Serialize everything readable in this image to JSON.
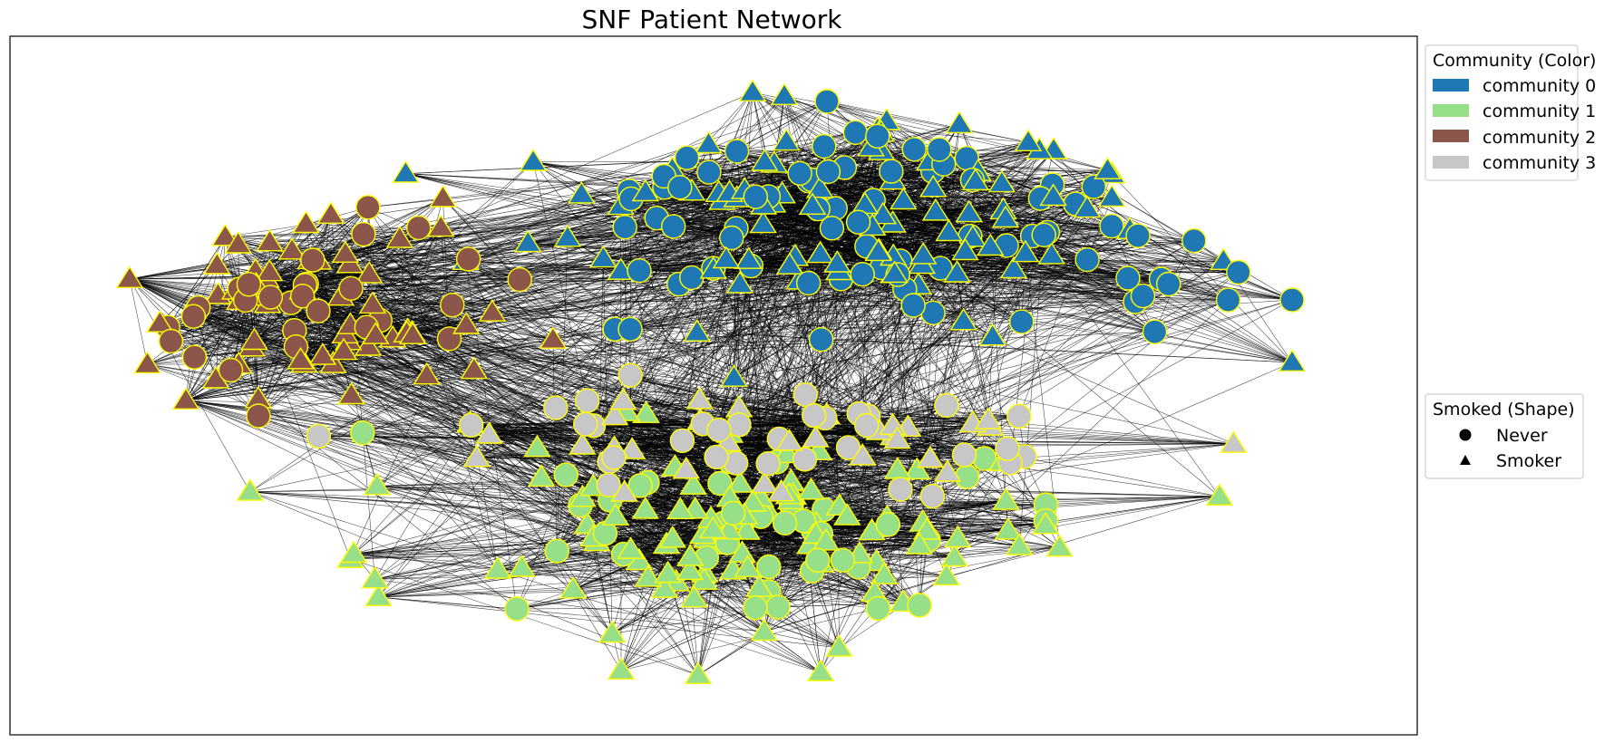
{
  "title": "SNF Patient Network",
  "node_style": {
    "stroke": "#ffff00",
    "edge_color": "#000000"
  },
  "legend_community": {
    "title": "Community (Color)",
    "items": [
      {
        "label": "community 0",
        "color": "#1f77b4"
      },
      {
        "label": "community 1",
        "color": "#98df8a"
      },
      {
        "label": "community 2",
        "color": "#8c564b"
      },
      {
        "label": "community 3",
        "color": "#c7c7c7"
      }
    ]
  },
  "legend_shape": {
    "title": "Smoked (Shape)",
    "items": [
      {
        "label": "Never",
        "shape": "circle"
      },
      {
        "label": "Smoker",
        "shape": "triangle"
      }
    ]
  }
}
